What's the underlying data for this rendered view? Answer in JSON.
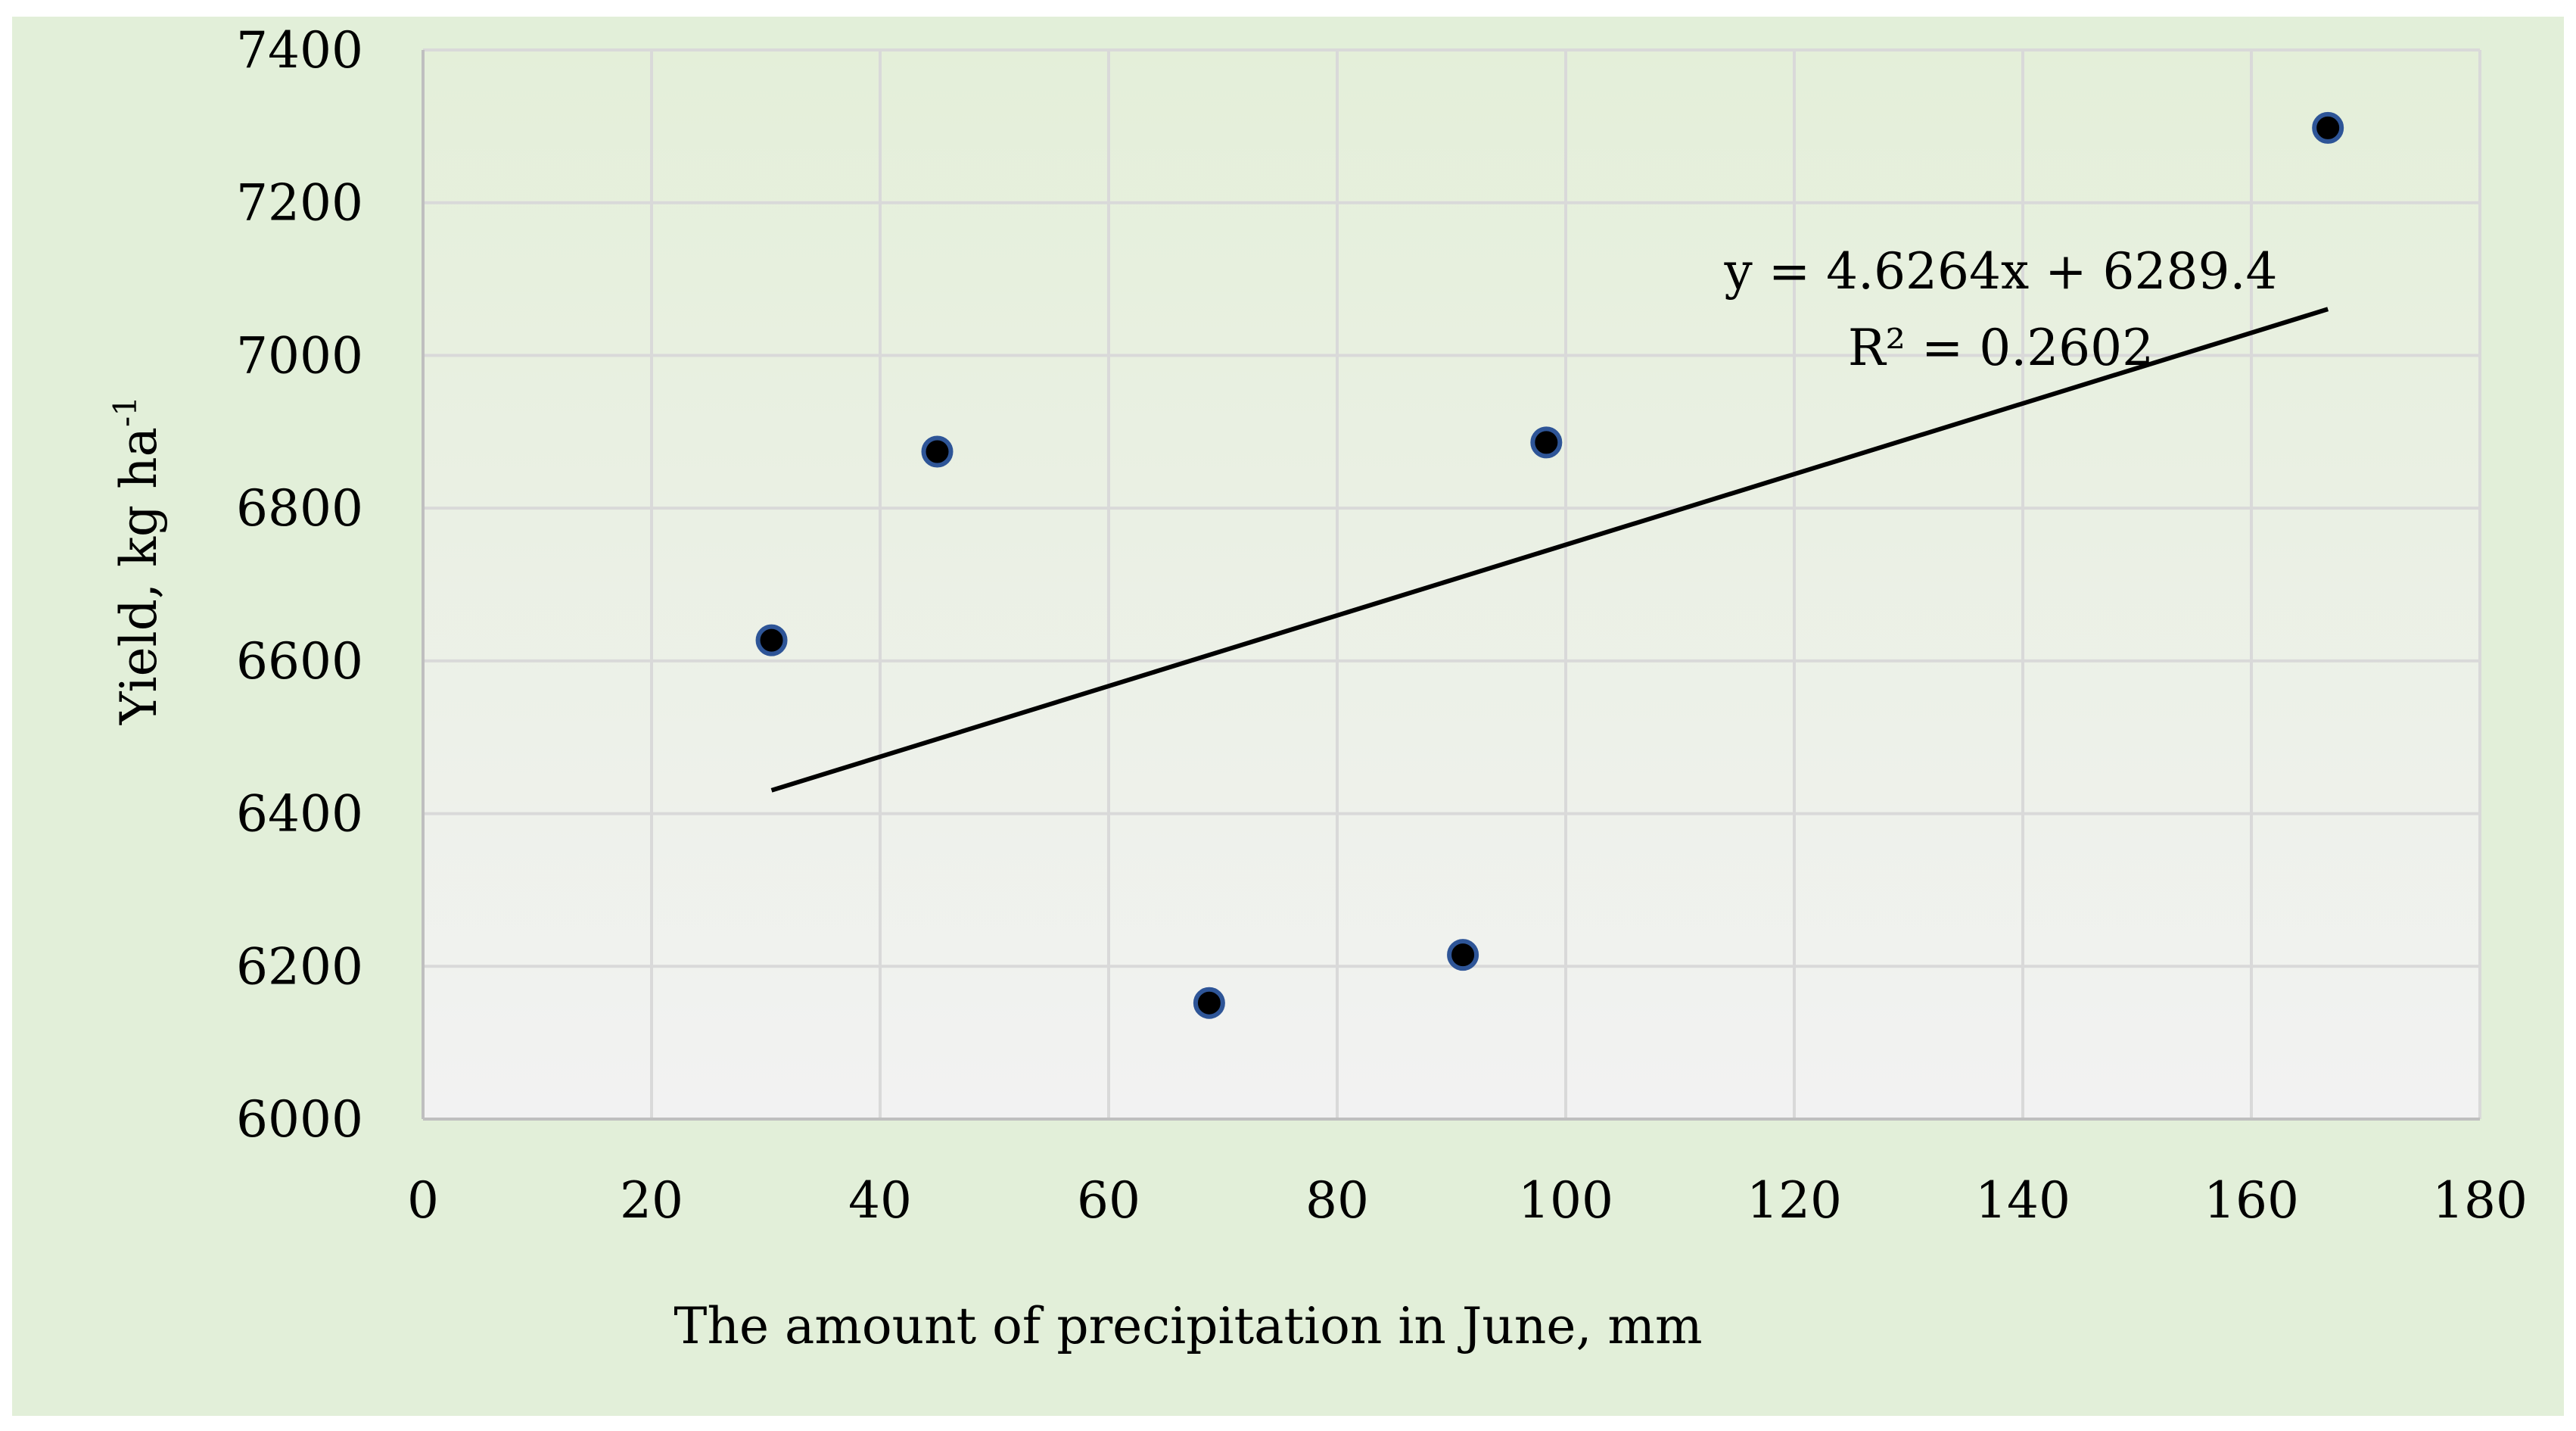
{
  "chart_data": {
    "type": "scatter",
    "xlabel": "The amount of precipitation in June, mm",
    "ylabel": "Yield, kg ha",
    "ylabel_superscript": "-1",
    "xlim": [
      0,
      180
    ],
    "ylim": [
      6000,
      7400
    ],
    "x_ticks": [
      0,
      20,
      40,
      60,
      80,
      100,
      120,
      140,
      160,
      180
    ],
    "y_ticks": [
      6000,
      6200,
      6400,
      6600,
      6800,
      7000,
      7200,
      7400
    ],
    "grid": true,
    "points": [
      {
        "x": 30.5,
        "y": 6627
      },
      {
        "x": 45,
        "y": 6874
      },
      {
        "x": 68.8,
        "y": 6152
      },
      {
        "x": 91,
        "y": 6215
      },
      {
        "x": 98.3,
        "y": 6886
      },
      {
        "x": 166.7,
        "y": 7298
      }
    ],
    "trendline": {
      "type": "linear",
      "slope": 4.6264,
      "intercept": 6289.4,
      "x_range": [
        30.5,
        166.7
      ],
      "equation_label": "y = 4.6264x + 6289.4",
      "r_squared_label": "R² = 0.2602"
    },
    "colors": {
      "outer_background": "#e2efd9",
      "plot_top": "#e4efd9",
      "plot_bottom": "#f2f2f2",
      "grid": "#d9d9d9",
      "axis": "#bfbfbf",
      "marker_fill": "#000000",
      "marker_edge": "#2e5597",
      "trendline": "#000000"
    }
  }
}
